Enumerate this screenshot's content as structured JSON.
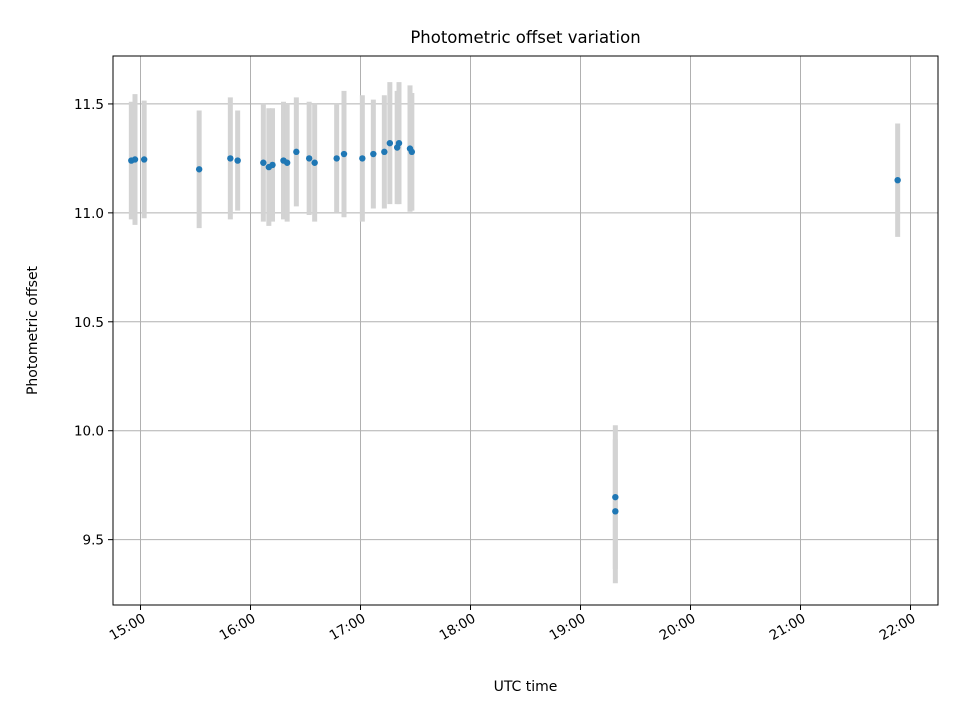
{
  "chart_data": {
    "type": "scatter",
    "title": "Photometric offset variation",
    "xlabel": "UTC time",
    "ylabel": "Photometric offset",
    "xlim": [
      "14:45",
      "22:15"
    ],
    "ylim": [
      9.2,
      11.72
    ],
    "x_ticks": [
      "15:00",
      "16:00",
      "17:00",
      "18:00",
      "19:00",
      "20:00",
      "21:00",
      "22:00"
    ],
    "y_ticks": [
      9.5,
      10.0,
      10.5,
      11.0,
      11.5
    ],
    "y_tick_labels": [
      "9.5",
      "10.0",
      "10.5",
      "11.0",
      "11.5"
    ],
    "grid": true,
    "colors": {
      "point": "#1f77b4",
      "errorbar": "#d3d3d3",
      "grid": "#b0b0b0"
    },
    "points": [
      {
        "x": "14:55",
        "y": 11.24,
        "err": 0.27
      },
      {
        "x": "14:57",
        "y": 11.245,
        "err": 0.3
      },
      {
        "x": "15:02",
        "y": 11.245,
        "err": 0.27
      },
      {
        "x": "15:32",
        "y": 11.2,
        "err": 0.27
      },
      {
        "x": "15:49",
        "y": 11.25,
        "err": 0.28
      },
      {
        "x": "15:53",
        "y": 11.24,
        "err": 0.23
      },
      {
        "x": "16:07",
        "y": 11.23,
        "err": 0.27
      },
      {
        "x": "16:10",
        "y": 11.21,
        "err": 0.27
      },
      {
        "x": "16:12",
        "y": 11.22,
        "err": 0.26
      },
      {
        "x": "16:18",
        "y": 11.24,
        "err": 0.27
      },
      {
        "x": "16:20",
        "y": 11.23,
        "err": 0.27
      },
      {
        "x": "16:25",
        "y": 11.28,
        "err": 0.25
      },
      {
        "x": "16:32",
        "y": 11.25,
        "err": 0.26
      },
      {
        "x": "16:35",
        "y": 11.23,
        "err": 0.27
      },
      {
        "x": "16:47",
        "y": 11.25,
        "err": 0.25
      },
      {
        "x": "16:51",
        "y": 11.27,
        "err": 0.29
      },
      {
        "x": "17:01",
        "y": 11.25,
        "err": 0.29
      },
      {
        "x": "17:07",
        "y": 11.27,
        "err": 0.25
      },
      {
        "x": "17:13",
        "y": 11.28,
        "err": 0.26
      },
      {
        "x": "17:16",
        "y": 11.32,
        "err": 0.28
      },
      {
        "x": "17:20",
        "y": 11.3,
        "err": 0.26
      },
      {
        "x": "17:21",
        "y": 11.32,
        "err": 0.28
      },
      {
        "x": "17:27",
        "y": 11.295,
        "err": 0.29
      },
      {
        "x": "17:28",
        "y": 11.28,
        "err": 0.27
      },
      {
        "x": "19:19",
        "y": 9.695,
        "err": 0.33
      },
      {
        "x": "19:19",
        "y": 9.63,
        "err": 0.33
      },
      {
        "x": "21:53",
        "y": 11.15,
        "err": 0.26
      }
    ]
  }
}
